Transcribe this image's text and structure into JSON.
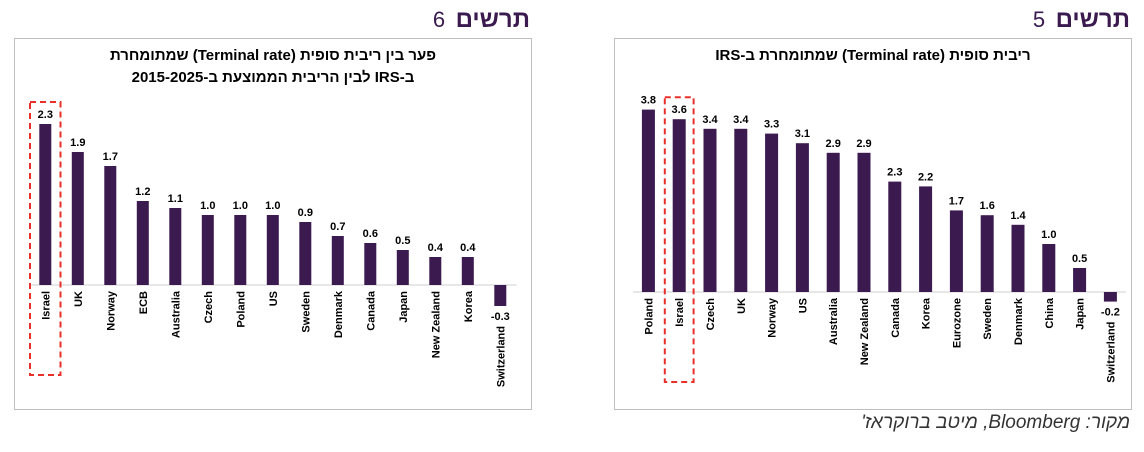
{
  "figures": [
    {
      "word": "תרשים",
      "number": "5",
      "title_lines": [
        "ריבית סופית (Terminal rate) שמתומחרת ב-IRS"
      ],
      "chart_data": {
        "type": "bar",
        "title": "ריבית סופית (Terminal rate) שמתומחרת ב-IRS",
        "categories": [
          "Poland",
          "Israel",
          "Czech",
          "UK",
          "Norway",
          "US",
          "Australia",
          "New Zealand",
          "Canada",
          "Korea",
          "Eurozone",
          "Sweden",
          "Denmark",
          "China",
          "Japan",
          "Switzerland"
        ],
        "values": [
          3.8,
          3.6,
          3.4,
          3.4,
          3.3,
          3.1,
          2.9,
          2.9,
          2.3,
          2.2,
          1.7,
          1.6,
          1.4,
          1.0,
          0.5,
          -0.2
        ],
        "value_labels": [
          "3.8",
          "3.6",
          "3.4",
          "3.4",
          "3.3",
          "3.1",
          "2.9",
          "2.9",
          "2.3",
          "2.2",
          "1.7",
          "1.6",
          "1.4",
          "1.0",
          "0.5",
          "-0.2"
        ],
        "highlight": "Israel",
        "bar_color": "#3b1a4f",
        "highlight_color": "#e8302a",
        "ylim": [
          -0.2,
          3.8
        ]
      }
    },
    {
      "word": "תרשים",
      "number": "6",
      "title_lines": [
        "פער בין ריבית סופית (Terminal rate) שמתומחרת",
        "ב-IRS לבין הריבית הממוצעת ב-2015-2025"
      ],
      "chart_data": {
        "type": "bar",
        "title": "פער בין ריבית סופית (Terminal rate) שמתומחרת ב-IRS לבין הריבית הממוצעת ב-2015-2025",
        "categories": [
          "Israel",
          "UK",
          "Norway",
          "ECB",
          "Australia",
          "Czech",
          "Poland",
          "US",
          "Sweden",
          "Denmark",
          "Canada",
          "Japan",
          "New Zealand",
          "Korea",
          "Switzerland"
        ],
        "values": [
          2.3,
          1.9,
          1.7,
          1.2,
          1.1,
          1.0,
          1.0,
          1.0,
          0.9,
          0.7,
          0.6,
          0.5,
          0.4,
          0.4,
          -0.3
        ],
        "value_labels": [
          "2.3",
          "1.9",
          "1.7",
          "1.2",
          "1.1",
          "1.0",
          "1.0",
          "1.0",
          "0.9",
          "0.7",
          "0.6",
          "0.5",
          "0.4",
          "0.4",
          "-0.3"
        ],
        "highlight": "Israel",
        "bar_color": "#3b1a4f",
        "highlight_color": "#e8302a",
        "ylim": [
          -0.3,
          2.3
        ]
      }
    }
  ],
  "source": "מקור: Bloomberg, מיטב ברוקראז'"
}
